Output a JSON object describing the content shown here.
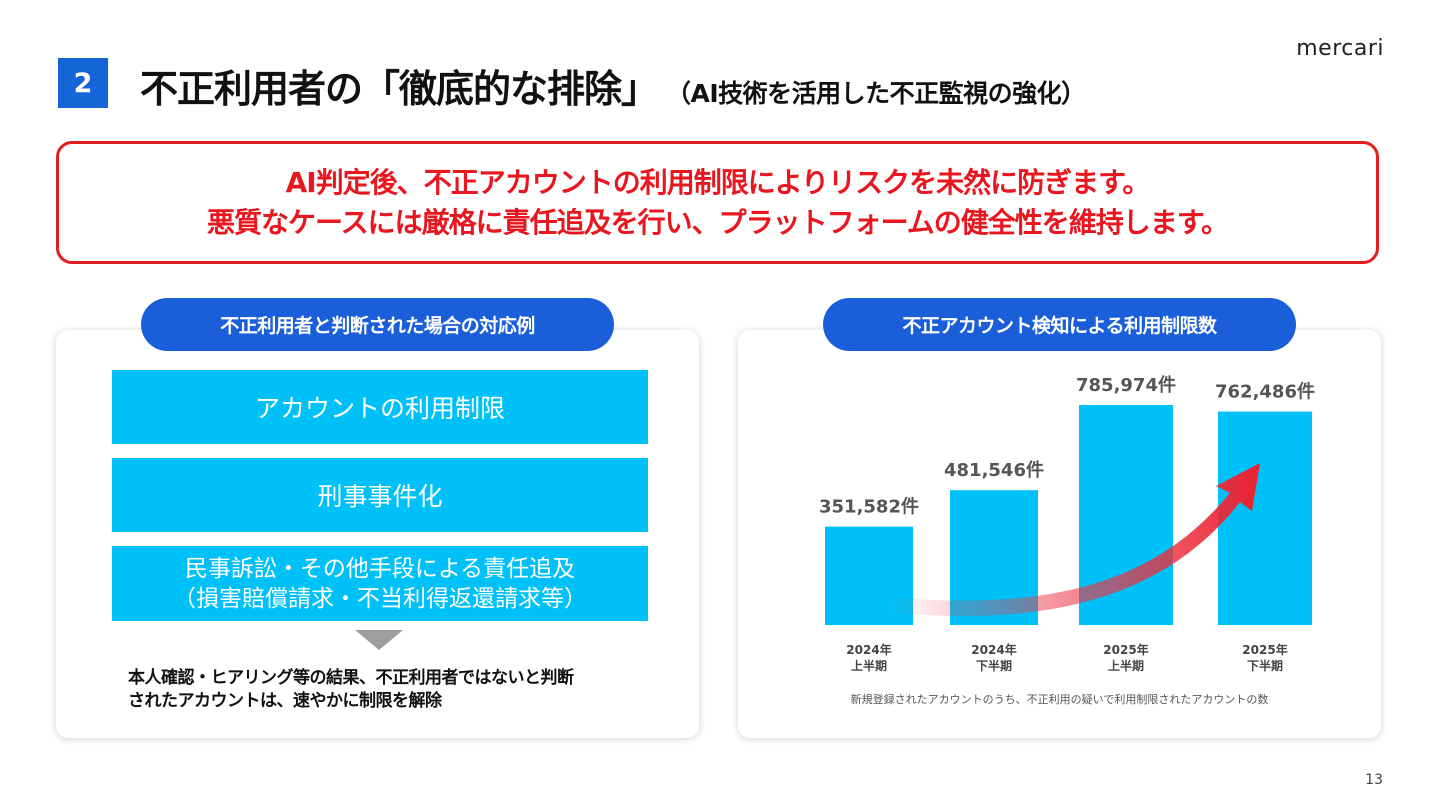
{
  "header": {
    "section_number": "2",
    "title": "不正利用者の「徹底的な排除」",
    "subtitle": "（AI技術を活用した不正監視の強化）",
    "logo": "mercari"
  },
  "message": {
    "line1": "AI判定後、不正アカウントの利用制限によりリスクを未然に防ぎます。",
    "line2": "悪質なケースには厳格に責任追及を行い、プラットフォームの健全性を維持します。"
  },
  "left_panel": {
    "title": "不正利用者と判断された場合の対応例",
    "actions": [
      {
        "line1": "アカウントの利用制限"
      },
      {
        "line1": "刑事事件化"
      },
      {
        "line1": "民事訴訟・その他手段による責任追及",
        "line2": "（損害賠償請求・不当利得返還請求等）"
      }
    ],
    "note_line1": "本人確認・ヒアリング等の結果、不正利用者ではないと判断",
    "note_line2": "されたアカウントは、速やかに制限を解除"
  },
  "right_panel": {
    "title": "不正アカウント検知による利用制限数",
    "note": "新規登録されたアカウントのうち、不正利用の疑いで利用制限されたアカウントの数"
  },
  "chart_data": {
    "type": "bar",
    "title": "不正アカウント検知による利用制限数",
    "categories": [
      "2024年 上半期",
      "2024年 下半期",
      "2025年 上半期",
      "2025年 下半期"
    ],
    "category_lines": [
      [
        "2024年",
        "上半期"
      ],
      [
        "2024年",
        "下半期"
      ],
      [
        "2025年",
        "上半期"
      ],
      [
        "2025年",
        "下半期"
      ]
    ],
    "values": [
      351582,
      481546,
      785974,
      762486
    ],
    "value_labels": [
      "351,582件",
      "481,546件",
      "785,974件",
      "762,486件"
    ],
    "unit": "件",
    "ylim": [
      0,
      900000
    ],
    "grid": false,
    "annotation": "upward trend arrow"
  },
  "colors": {
    "brand_blue": "#1a5fd9",
    "bar_cyan": "#00c1f7",
    "alert_red": "#e8171f"
  },
  "footer": {
    "page_number": "13"
  }
}
